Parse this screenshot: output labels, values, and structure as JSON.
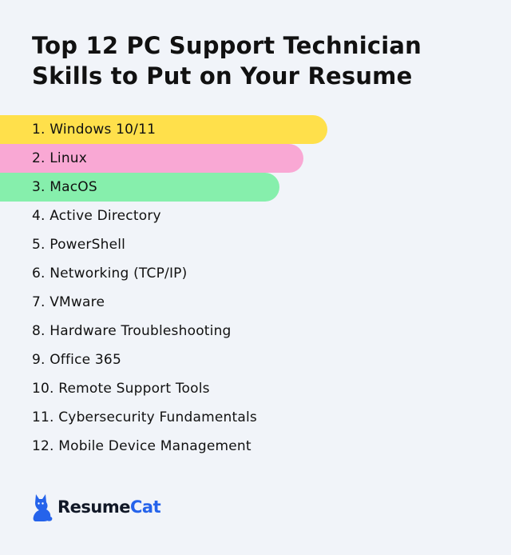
{
  "title": {
    "line1": "Top 12 PC Support Technician",
    "line2": "Skills to Put on Your Resume"
  },
  "skills": [
    {
      "label": "1. Windows 10/11",
      "highlight": "#ffe04b"
    },
    {
      "label": "2. Linux",
      "highlight": "#f9a8d4"
    },
    {
      "label": "3. MacOS",
      "highlight": "#86efac"
    },
    {
      "label": "4. Active Directory"
    },
    {
      "label": "5. PowerShell"
    },
    {
      "label": "6. Networking (TCP/IP)"
    },
    {
      "label": "7. VMware"
    },
    {
      "label": "8. Hardware Troubleshooting"
    },
    {
      "label": "9. Office 365"
    },
    {
      "label": "10. Remote Support Tools"
    },
    {
      "label": "11. Cybersecurity Fundamentals"
    },
    {
      "label": "12. Mobile Device Management"
    }
  ],
  "brand": {
    "name_part1": "Resume",
    "name_part2": "Cat",
    "icon": "cat-logo-icon",
    "color_primary": "#2563eb",
    "color_text": "#111827"
  }
}
